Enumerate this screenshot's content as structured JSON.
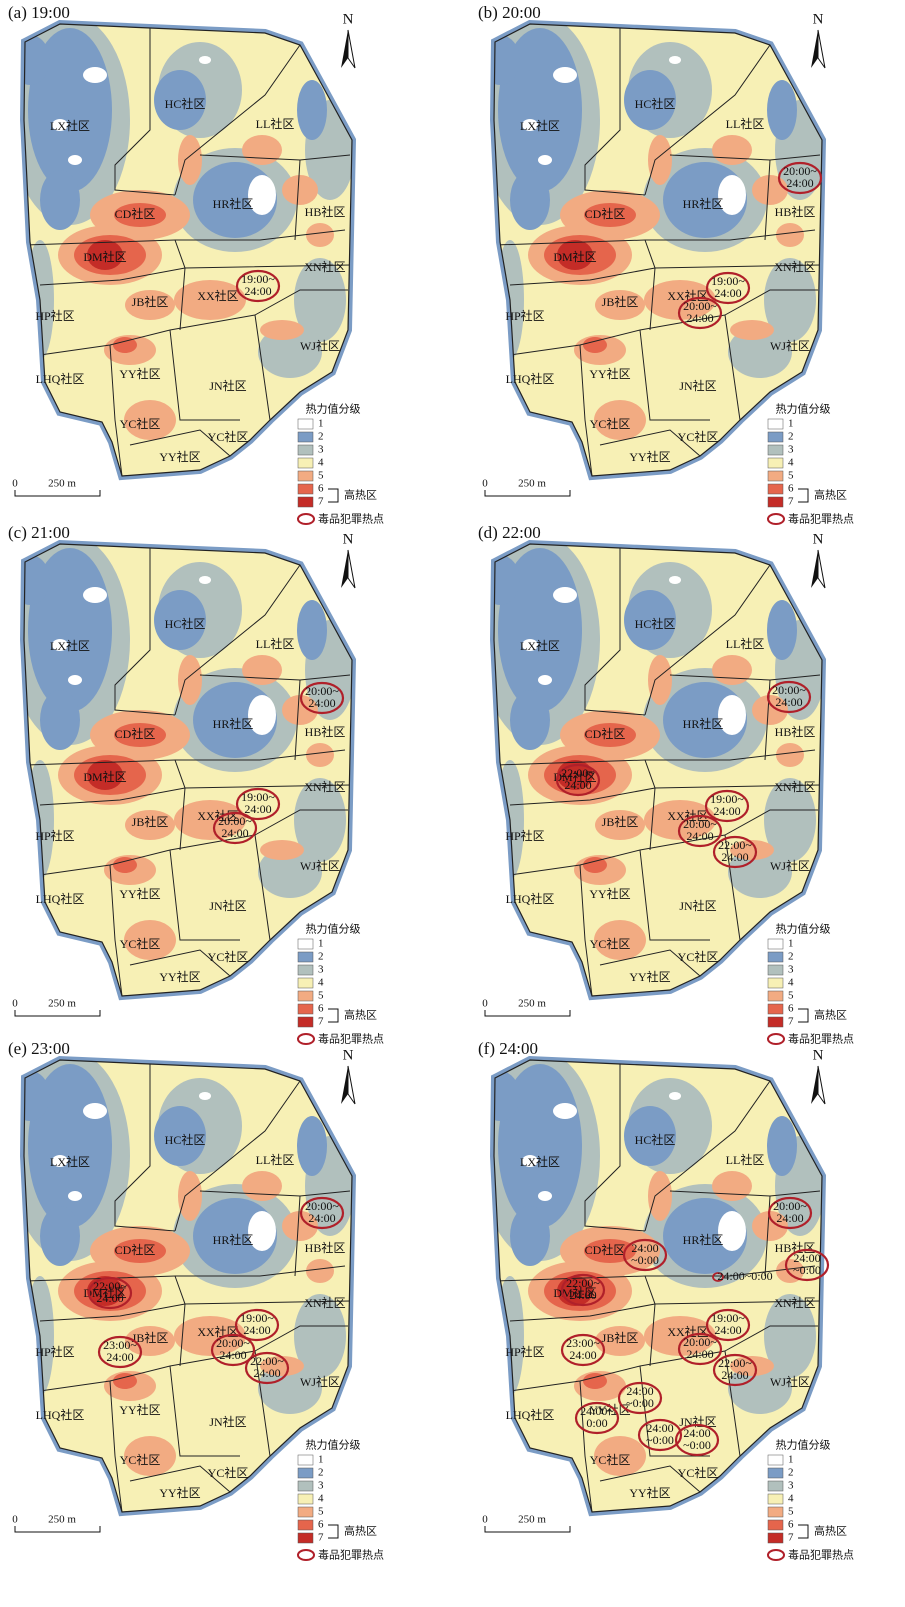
{
  "panels": [
    {
      "title": "(a) 19:00",
      "hotspots": [
        [
          "19:00~",
          "24:00"
        ]
      ]
    },
    {
      "title": "(b) 20:00",
      "hotspots": [
        [
          "20:00~",
          "24:00"
        ],
        [
          "19:00~",
          "24:00"
        ],
        [
          "20:00~",
          "24:00"
        ]
      ]
    },
    {
      "title": "(c) 21:00",
      "hotspots": [
        [
          "20:00~",
          "24:00"
        ],
        [
          "19:00~",
          "24:00"
        ],
        [
          "20:00~",
          "24:00"
        ]
      ]
    },
    {
      "title": "(d) 22:00",
      "hotspots": [
        [
          "20:00~",
          "24:00"
        ],
        [
          "22:00~",
          "24:00"
        ],
        [
          "19:00~",
          "24:00"
        ],
        [
          "20:00~",
          "24:00"
        ],
        [
          "22:00~",
          "24:00"
        ]
      ]
    },
    {
      "title": "(e) 23:00",
      "hotspots": [
        [
          "20:00~",
          "24:00"
        ],
        [
          "22:00~",
          "24:00"
        ],
        [
          "23:00~",
          "24:00"
        ],
        [
          "19:00~",
          "24:00"
        ],
        [
          "20:00~",
          "24:00"
        ],
        [
          "22:00~",
          "24:00"
        ]
      ]
    },
    {
      "title": "(f) 24:00",
      "hotspots": [
        [
          "20:00~",
          "24:00"
        ],
        [
          "24:00",
          "~0:00"
        ],
        [
          "24:00",
          "~0:00"
        ],
        [
          "24:00~0:00"
        ],
        [
          "22:00~",
          "24:00"
        ],
        [
          "23:00~",
          "24:00"
        ],
        [
          "19:00~",
          "24:00"
        ],
        [
          "20:00~",
          "24:00"
        ],
        [
          "22:00~",
          "24:00"
        ],
        [
          "24:00",
          "~0:00"
        ],
        [
          "24:00~",
          "0:00"
        ],
        [
          "24:00",
          "~0:00"
        ],
        [
          "24:00",
          "~0:00"
        ]
      ]
    }
  ],
  "communities": [
    "LX社区",
    "HC社区",
    "LL社区",
    "CD社区",
    "HR社区",
    "HB社区",
    "DM社区",
    "XN社区",
    "JB社区",
    "XX社区",
    "HP社区",
    "WJ社区",
    "LHQ社区",
    "YY社区",
    "JN社区",
    "YC社区",
    "YC社区",
    "YY社区"
  ],
  "north": "N",
  "scale": {
    "zero": "0",
    "length": "250 m"
  },
  "legend": {
    "title": "热力值分级",
    "levels": [
      1,
      2,
      3,
      4,
      5,
      6,
      7
    ],
    "colors": [
      "#ffffff",
      "#7b9cc5",
      "#b1c0bd",
      "#f7f0b5",
      "#f2ab82",
      "#e5654c",
      "#c42c27"
    ],
    "high_heat": "高热区",
    "hotspot": "毒品犯罪热点",
    "hotspot_color": "#b0202a"
  }
}
